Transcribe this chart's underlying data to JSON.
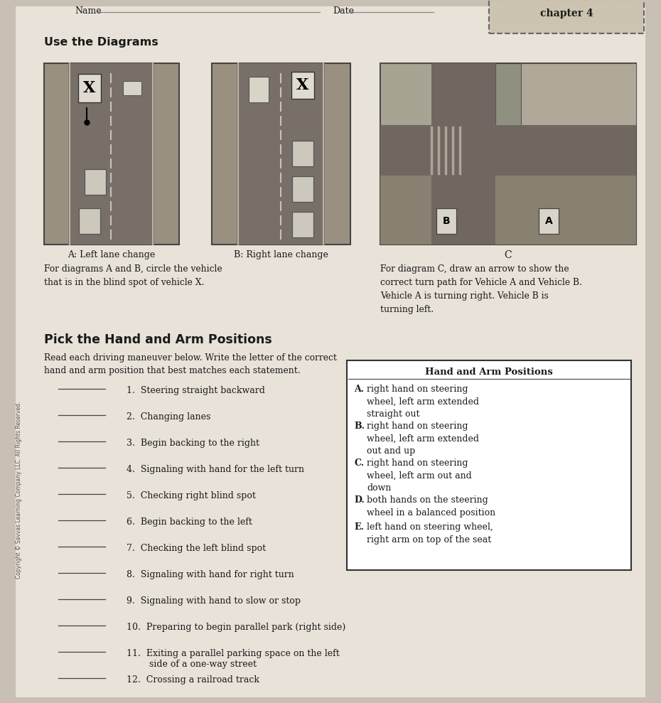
{
  "bg_color": "#c8c0b4",
  "page_bg": "#e8e2d8",
  "title_name": "Name",
  "title_date": "Date",
  "chapter_box": "chapter 4",
  "section1_title": "Use the Diagrams",
  "diagram_A_label": "A: Left lane change",
  "diagram_B_label": "B: Right lane change",
  "diagram_C_label": "C",
  "instructions_AB": "For diagrams A and B, circle the vehicle\nthat is in the blind spot of vehicle X.",
  "instructions_C": "For diagram C, draw an arrow to show the\ncorrect turn path for Vehicle A and Vehicle B.\nVehicle A is turning right. Vehicle B is\nturning left.",
  "section2_title": "Pick the Hand and Arm Positions",
  "section2_intro": "Read each driving maneuver below. Write the letter of the correct\nhand and arm position that best matches each statement.",
  "items": [
    "1.  Steering straight backward",
    "2.  Changing lanes",
    "3.  Begin backing to the right",
    "4.  Signaling with hand for the left turn",
    "5.  Checking right blind spot",
    "6.  Begin backing to the left",
    "7.  Checking the left blind spot",
    "8.  Signaling with hand for right turn",
    "9.  Signaling with hand to slow or stop",
    "10.  Preparing to begin parallel park (right side)",
    "11.  Exiting a parallel parking space on the left\n        side of a one-way street",
    "12.  Crossing a railroad track"
  ],
  "box_title": "Hand and Arm Positions",
  "box_items": [
    [
      "A.",
      "right hand on steering\nwheel, left arm extended\nstraight out"
    ],
    [
      "B.",
      "right hand on steering\nwheel, left arm extended\nout and up"
    ],
    [
      "C.",
      "right hand on steering\nwheel, left arm out and\ndown"
    ],
    [
      "D.",
      "both hands on the steering\nwheel in a balanced position"
    ],
    [
      "E.",
      "left hand on steering wheel,\nright arm on top of the seat"
    ]
  ],
  "copyright": "Copyright © Savvas Learning Company LLC. All Rights Reserved.",
  "text_color": "#1a1a1a",
  "line_color": "#444444"
}
